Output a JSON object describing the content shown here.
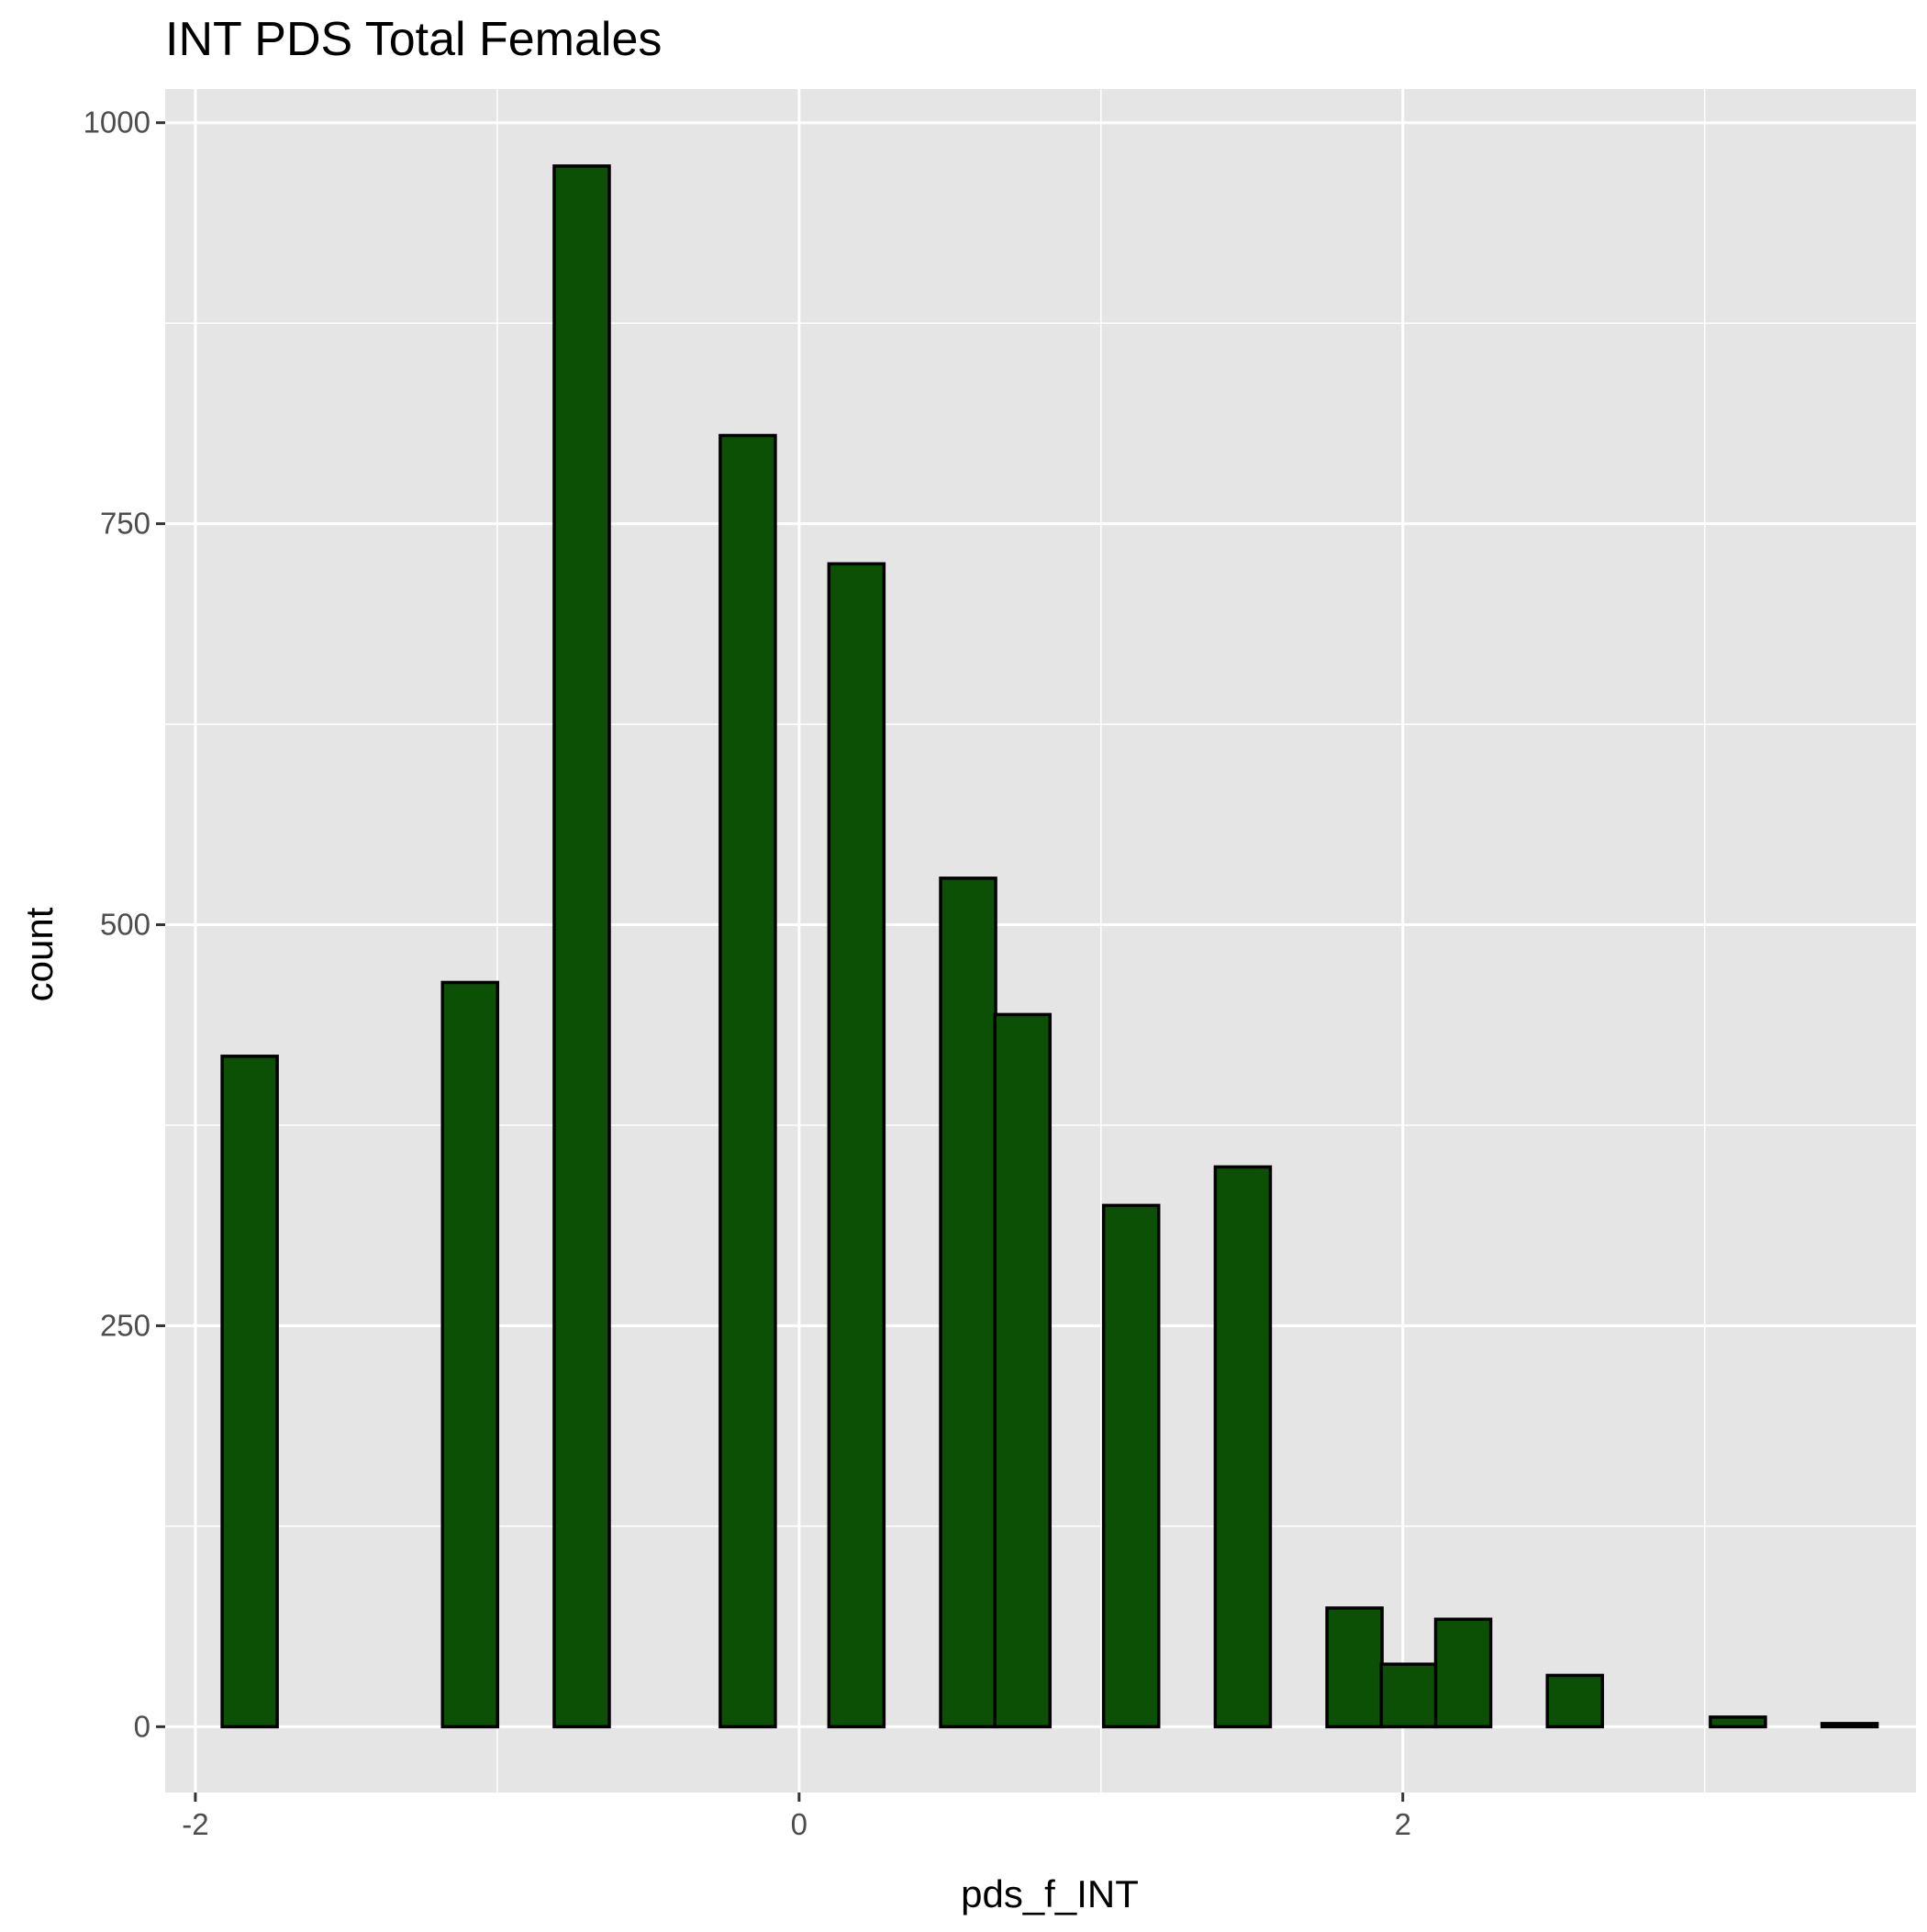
{
  "chart_data": {
    "type": "bar",
    "title": "INT PDS Total Females",
    "xlabel": "pds_f_INT",
    "ylabel": "count",
    "xlim": [
      -2.1,
      3.7
    ],
    "ylim": [
      -41,
      1021
    ],
    "x_ticks": [
      -2,
      0,
      2
    ],
    "x_tick_labels": [
      "-2",
      "0",
      "2"
    ],
    "y_ticks": [
      0,
      250,
      500,
      750,
      1000
    ],
    "y_tick_labels": [
      "0",
      "250",
      "500",
      "750",
      "1000"
    ],
    "bin_width": 0.1825,
    "bins": [
      {
        "x": -1.82,
        "count": 418
      },
      {
        "x": -1.64,
        "count": 0
      },
      {
        "x": -1.45,
        "count": 0
      },
      {
        "x": -1.27,
        "count": 0
      },
      {
        "x": -1.09,
        "count": 464
      },
      {
        "x": -0.91,
        "count": 0
      },
      {
        "x": -0.72,
        "count": 973
      },
      {
        "x": -0.54,
        "count": 0
      },
      {
        "x": -0.36,
        "count": 0
      },
      {
        "x": -0.17,
        "count": 805
      },
      {
        "x": 0.01,
        "count": 0
      },
      {
        "x": 0.19,
        "count": 725
      },
      {
        "x": 0.37,
        "count": 0
      },
      {
        "x": 0.56,
        "count": 529
      },
      {
        "x": 0.74,
        "count": 444
      },
      {
        "x": 0.92,
        "count": 0
      },
      {
        "x": 1.1,
        "count": 325
      },
      {
        "x": 1.29,
        "count": 0
      },
      {
        "x": 1.47,
        "count": 349
      },
      {
        "x": 1.65,
        "count": 0
      },
      {
        "x": 1.84,
        "count": 74
      },
      {
        "x": 2.02,
        "count": 39
      },
      {
        "x": 2.2,
        "count": 67
      },
      {
        "x": 2.38,
        "count": 0
      },
      {
        "x": 2.57,
        "count": 32
      },
      {
        "x": 2.75,
        "count": 0
      },
      {
        "x": 2.93,
        "count": 0
      },
      {
        "x": 3.11,
        "count": 6
      },
      {
        "x": 3.3,
        "count": 0
      },
      {
        "x": 3.48,
        "count": 2
      }
    ],
    "grid": true,
    "bar_fill": "#0b5004",
    "bar_outline": "#000000",
    "panel_background": "#e5e5e5",
    "grid_color": "#ffffff"
  }
}
